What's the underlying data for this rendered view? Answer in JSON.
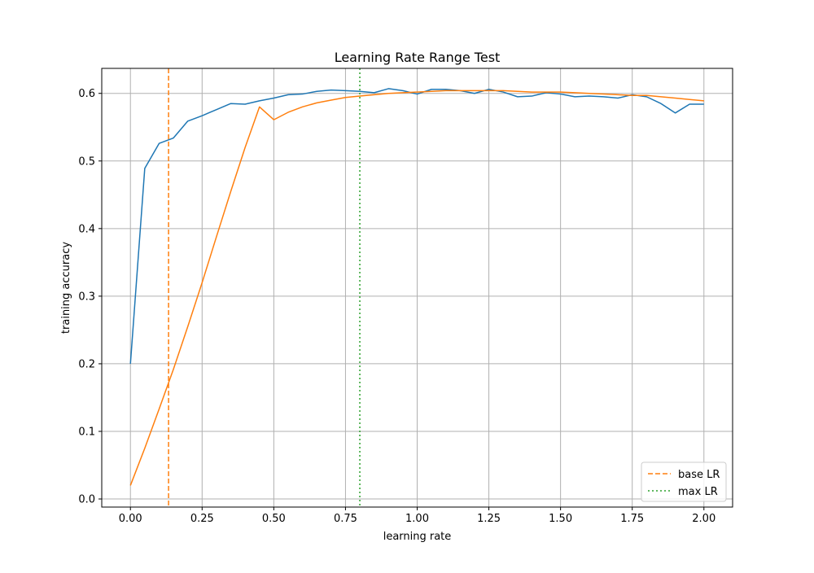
{
  "chart_data": {
    "type": "line",
    "title": "Learning Rate Range Test",
    "xlabel": "learning rate",
    "ylabel": "training accuracy",
    "xlim": [
      -0.1,
      2.1
    ],
    "ylim": [
      -0.012,
      0.637
    ],
    "grid": true,
    "legend_placement": "lower right",
    "x_ticks": [
      0.0,
      0.25,
      0.5,
      0.75,
      1.0,
      1.25,
      1.5,
      1.75,
      2.0
    ],
    "x_tick_labels": [
      "0.00",
      "0.25",
      "0.50",
      "0.75",
      "1.00",
      "1.25",
      "1.50",
      "1.75",
      "2.00"
    ],
    "y_ticks": [
      0.0,
      0.1,
      0.2,
      0.3,
      0.4,
      0.5,
      0.6
    ],
    "y_tick_labels": [
      "0.0",
      "0.1",
      "0.2",
      "0.3",
      "0.4",
      "0.5",
      "0.6"
    ],
    "series": [
      {
        "color": "#1f77b4",
        "style": "solid",
        "x": [
          0.0,
          0.05,
          0.1,
          0.15,
          0.2,
          0.25,
          0.3,
          0.35,
          0.4,
          0.45,
          0.5,
          0.55,
          0.6,
          0.65,
          0.7,
          0.75,
          0.8,
          0.85,
          0.9,
          0.95,
          1.0,
          1.05,
          1.1,
          1.15,
          1.2,
          1.25,
          1.3,
          1.35,
          1.4,
          1.45,
          1.5,
          1.55,
          1.6,
          1.65,
          1.7,
          1.75,
          1.8,
          1.85,
          1.9,
          1.95,
          2.0
        ],
        "y": [
          0.2,
          0.489,
          0.526,
          0.534,
          0.559,
          0.567,
          0.576,
          0.585,
          0.584,
          0.589,
          0.593,
          0.598,
          0.599,
          0.603,
          0.605,
          0.604,
          0.603,
          0.601,
          0.607,
          0.604,
          0.599,
          0.606,
          0.606,
          0.604,
          0.6,
          0.606,
          0.602,
          0.595,
          0.596,
          0.601,
          0.599,
          0.595,
          0.596,
          0.595,
          0.593,
          0.598,
          0.595,
          0.585,
          0.571,
          0.584,
          0.584
        ]
      },
      {
        "color": "#ff7f0e",
        "style": "solid",
        "x": [
          0.0,
          0.05,
          0.1,
          0.15,
          0.2,
          0.25,
          0.3,
          0.35,
          0.4,
          0.45,
          0.5,
          0.55,
          0.6,
          0.65,
          0.7,
          0.75,
          0.8,
          0.85,
          0.9,
          0.95,
          1.0,
          1.05,
          1.1,
          1.15,
          1.2,
          1.25,
          1.3,
          1.35,
          1.4,
          1.45,
          1.5,
          1.55,
          1.6,
          1.65,
          1.7,
          1.75,
          1.8,
          1.85,
          1.9,
          1.95,
          2.0
        ],
        "y": [
          0.02,
          0.075,
          0.133,
          0.192,
          0.255,
          0.32,
          0.388,
          0.455,
          0.52,
          0.58,
          0.561,
          0.572,
          0.58,
          0.586,
          0.59,
          0.594,
          0.596,
          0.598,
          0.6,
          0.601,
          0.602,
          0.603,
          0.604,
          0.604,
          0.604,
          0.604,
          0.604,
          0.603,
          0.602,
          0.602,
          0.602,
          0.601,
          0.6,
          0.599,
          0.598,
          0.597,
          0.597,
          0.595,
          0.593,
          0.591,
          0.589
        ]
      }
    ],
    "vlines": [
      {
        "name": "base LR",
        "x": 0.133,
        "color": "#ff7f0e",
        "style": "dashed"
      },
      {
        "name": "max LR",
        "x": 0.8,
        "color": "#2ca02c",
        "style": "dotted"
      }
    ]
  }
}
